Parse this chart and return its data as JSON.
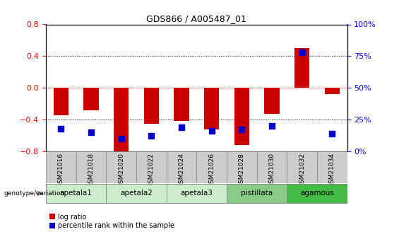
{
  "title": "GDS866 / A005487_01",
  "samples": [
    "GSM21016",
    "GSM21018",
    "GSM21020",
    "GSM21022",
    "GSM21024",
    "GSM21026",
    "GSM21028",
    "GSM21030",
    "GSM21032",
    "GSM21034"
  ],
  "log_ratio": [
    -0.35,
    -0.28,
    -0.82,
    -0.45,
    -0.42,
    -0.52,
    -0.72,
    -0.33,
    0.5,
    -0.08
  ],
  "percentile_rank": [
    18,
    15,
    10,
    12,
    19,
    16,
    17,
    20,
    78,
    14
  ],
  "groups": [
    {
      "label": "apetala1",
      "samples": [
        0,
        1
      ],
      "color": "#cceecc"
    },
    {
      "label": "apetala2",
      "samples": [
        2,
        3
      ],
      "color": "#cceecc"
    },
    {
      "label": "apetala3",
      "samples": [
        4,
        5
      ],
      "color": "#cceecc"
    },
    {
      "label": "pistillata",
      "samples": [
        6,
        7
      ],
      "color": "#88cc88"
    },
    {
      "label": "agamous",
      "samples": [
        8,
        9
      ],
      "color": "#44bb44"
    }
  ],
  "ylim_left": [
    -0.8,
    0.8
  ],
  "ylim_right": [
    0,
    100
  ],
  "yticks_left": [
    -0.8,
    -0.4,
    0.0,
    0.4,
    0.8
  ],
  "yticks_right": [
    0,
    25,
    50,
    75,
    100
  ],
  "bar_color": "#cc0000",
  "dot_color": "#0000cc",
  "bar_width": 0.5,
  "dot_size": 35,
  "genotype_label": "genotype/variation",
  "legend_log_ratio": "log ratio",
  "legend_percentile": "percentile rank within the sample",
  "sample_header_color": "#cccccc",
  "sample_header_edgecolor": "#888888"
}
